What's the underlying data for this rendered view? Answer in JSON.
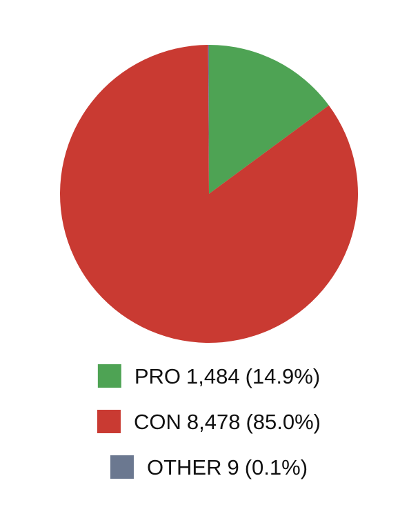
{
  "chart_data": {
    "type": "pie",
    "categories": [
      "PRO",
      "CON",
      "OTHER"
    ],
    "values": [
      1484,
      8478,
      9
    ],
    "value_labels": [
      "1,484",
      "8,478",
      "9"
    ],
    "percents": [
      14.9,
      85.0,
      0.1
    ],
    "percent_labels": [
      "(14.9%)",
      "(85.0%)",
      "(0.1%)"
    ],
    "colors": [
      "#4ea354",
      "#c93a32",
      "#6b7890"
    ],
    "start_angle": 0,
    "direction": "clockwise",
    "legend": "bottom"
  }
}
